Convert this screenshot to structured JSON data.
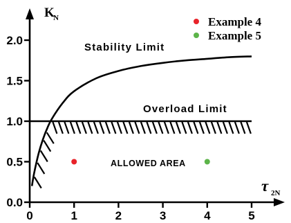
{
  "chart_data": {
    "type": "line",
    "xlabel_main": "τ",
    "xlabel_sub": "2N",
    "ylabel_main": "K",
    "ylabel_sub": "N",
    "xlim": [
      0,
      5
    ],
    "ylim": [
      0,
      2.0
    ],
    "x_ticks": [
      "0",
      "1",
      "2",
      "3",
      "4",
      "5"
    ],
    "y_ticks": [
      "0.0",
      "0.5",
      "1.0",
      "1.5",
      "2.0"
    ],
    "grid": false,
    "series": [
      {
        "name": "Stability Limit",
        "x": [
          0.05,
          0.1,
          0.2,
          0.3,
          0.4,
          0.5,
          0.75,
          1.0,
          1.5,
          2.0,
          2.5,
          3.0,
          3.5,
          4.0,
          4.5,
          5.0
        ],
        "y": [
          0.2,
          0.36,
          0.6,
          0.78,
          0.92,
          1.03,
          1.23,
          1.37,
          1.53,
          1.62,
          1.68,
          1.72,
          1.75,
          1.77,
          1.79,
          1.8
        ]
      },
      {
        "name": "Overload Limit",
        "x": [
          0,
          5
        ],
        "y": [
          1.0,
          1.0
        ]
      }
    ],
    "points": [
      {
        "name": "Example 4",
        "x": 1.0,
        "y": 0.5,
        "color": "#e8232a"
      },
      {
        "name": "Example 5",
        "x": 4.0,
        "y": 0.5,
        "color": "#5cb449"
      }
    ],
    "annotations": {
      "stability": "Stability Limit",
      "overload": "Overload Limit",
      "allowed": "ALLOWED AREA"
    },
    "legend_position": "top-right",
    "legend": [
      {
        "label": "Example 4",
        "color": "#e8232a"
      },
      {
        "label": "Example 5",
        "color": "#5cb449"
      }
    ]
  }
}
